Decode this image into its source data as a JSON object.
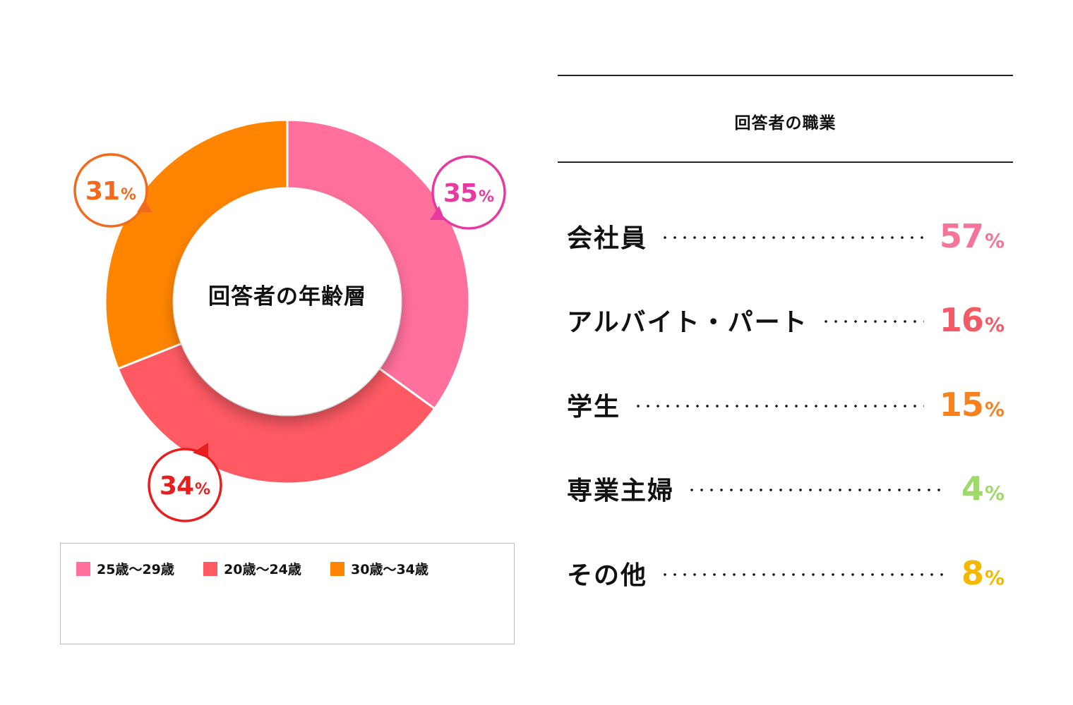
{
  "chart_data": [
    {
      "type": "pie",
      "title": "回答者の年齢層",
      "categories": [
        "25歳〜29歳",
        "20歳〜24歳",
        "30歳〜34歳"
      ],
      "values": [
        35,
        34,
        31
      ],
      "value_labels": [
        "35",
        "34",
        "31"
      ],
      "unit": "%",
      "colors": [
        "#ff709d",
        "#ff5a63",
        "#ff8500"
      ],
      "callout_colors": [
        "#e63aa0",
        "#e81d1d",
        "#f26a1a"
      ],
      "legend_position": "bottom"
    },
    {
      "type": "table",
      "title": "回答者の職業",
      "categories": [
        "会社員",
        "アルバイト・パート",
        "学生",
        "専業主婦",
        "その他"
      ],
      "values": [
        57,
        16,
        15,
        4,
        8
      ],
      "value_labels": [
        "57",
        "16",
        "15",
        "4",
        "8"
      ],
      "unit": "%",
      "colors": [
        "#f57498",
        "#f25a66",
        "#f6821f",
        "#9fd96a",
        "#f5b800"
      ]
    }
  ]
}
